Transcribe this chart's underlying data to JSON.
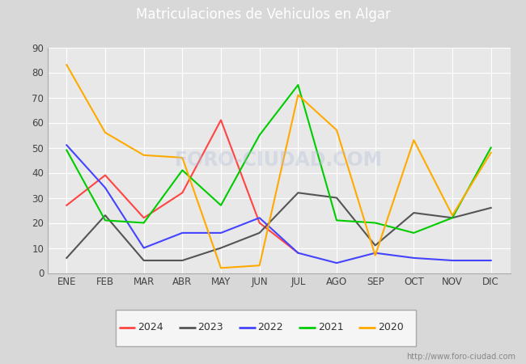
{
  "title": "Matriculaciones de Vehiculos en Algar",
  "title_color": "#ffffff",
  "title_bg_color": "#5b7ec9",
  "months": [
    "ENE",
    "FEB",
    "MAR",
    "ABR",
    "MAY",
    "JUN",
    "JUL",
    "AGO",
    "SEP",
    "OCT",
    "NOV",
    "DIC"
  ],
  "series": {
    "2024": {
      "color": "#ff4444",
      "data": [
        27,
        39,
        22,
        32,
        61,
        20,
        8,
        null,
        null,
        null,
        null,
        null
      ]
    },
    "2023": {
      "color": "#555555",
      "data": [
        6,
        23,
        5,
        5,
        10,
        16,
        32,
        30,
        11,
        24,
        22,
        26
      ]
    },
    "2022": {
      "color": "#4444ff",
      "data": [
        51,
        34,
        10,
        16,
        16,
        22,
        8,
        4,
        8,
        6,
        5,
        5
      ]
    },
    "2021": {
      "color": "#00cc00",
      "data": [
        49,
        21,
        20,
        41,
        27,
        55,
        75,
        21,
        20,
        16,
        22,
        50
      ]
    },
    "2020": {
      "color": "#ffaa00",
      "data": [
        83,
        56,
        47,
        46,
        2,
        3,
        71,
        57,
        7,
        53,
        23,
        48
      ]
    }
  },
  "ylim": [
    0,
    90
  ],
  "yticks": [
    0,
    10,
    20,
    30,
    40,
    50,
    60,
    70,
    80,
    90
  ],
  "outer_bg_color": "#d8d8d8",
  "plot_bg_color": "#e8e8e8",
  "grid_color": "#ffffff",
  "url": "http://www.foro-ciudad.com",
  "watermark_text": "FORO-CIUDAD.COM",
  "legend_order": [
    "2024",
    "2023",
    "2022",
    "2021",
    "2020"
  ]
}
